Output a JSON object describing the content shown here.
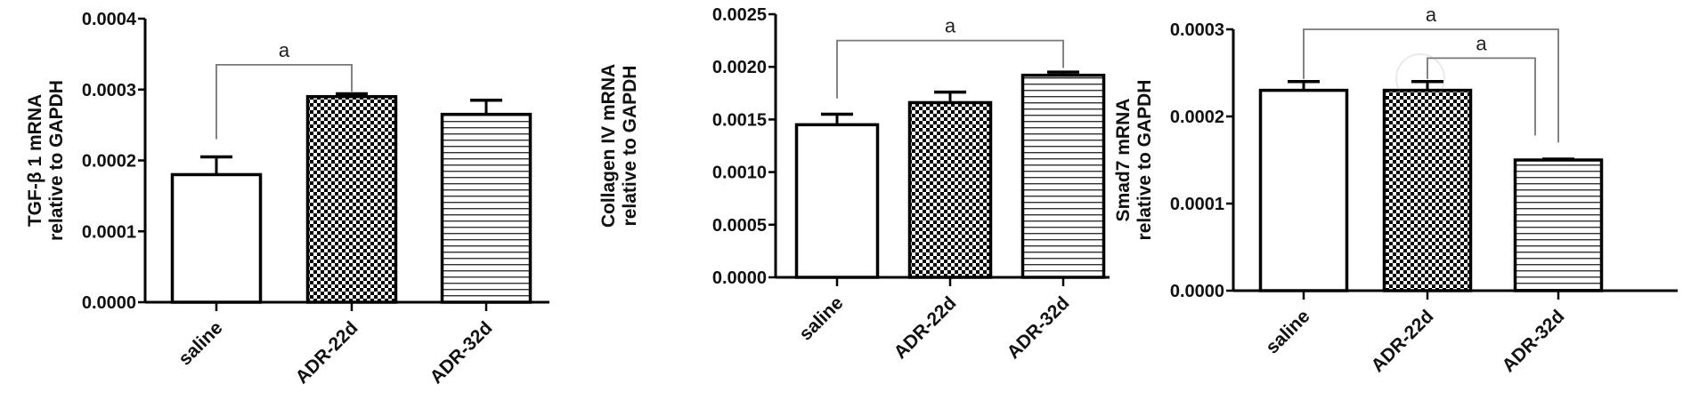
{
  "chart_data": [
    {
      "type": "bar",
      "title": "",
      "ylabel_lines": [
        "TGF-β 1 mRNA",
        "relative to GAPDH"
      ],
      "xlabel": "",
      "categories": [
        "saline",
        "ADR-22d",
        "ADR-32d"
      ],
      "values": [
        0.00018,
        0.00029,
        0.000265
      ],
      "errors": [
        2.5e-05,
        4e-06,
        2e-05
      ],
      "patterns": [
        "white",
        "checker",
        "hlines"
      ],
      "ylim": [
        0,
        0.0004
      ],
      "yticks": [
        "0.0000",
        "0.0001",
        "0.0002",
        "0.0003",
        "0.0004"
      ],
      "ytick_values": [
        0,
        0.0001,
        0.0002,
        0.0003,
        0.0004
      ],
      "significance": [
        {
          "from": "saline",
          "to": "ADR-22d",
          "label": "a"
        }
      ]
    },
    {
      "type": "bar",
      "title": "",
      "ylabel_lines": [
        "Collagen IV mRNA",
        "relative to GAPDH"
      ],
      "xlabel": "",
      "categories": [
        "saline",
        "ADR-22d",
        "ADR-32d"
      ],
      "values": [
        0.00145,
        0.00166,
        0.00192
      ],
      "errors": [
        0.0001,
        0.0001,
        3e-05
      ],
      "patterns": [
        "white",
        "checker",
        "hlines"
      ],
      "ylim": [
        0,
        0.0025
      ],
      "yticks": [
        "0.0000",
        "0.0005",
        "0.0010",
        "0.0015",
        "0.0020",
        "0.0025"
      ],
      "ytick_values": [
        0,
        0.0005,
        0.001,
        0.0015,
        0.002,
        0.0025
      ],
      "significance": [
        {
          "from": "saline",
          "to": "ADR-32d",
          "label": "a"
        }
      ]
    },
    {
      "type": "bar",
      "title": "",
      "ylabel_lines": [
        "Smad7 mRNA",
        "relative to GAPDH"
      ],
      "xlabel": "",
      "categories": [
        "saline",
        "ADR-22d",
        "ADR-32d"
      ],
      "values": [
        0.00023,
        0.00023,
        0.00015
      ],
      "errors": [
        1e-05,
        1e-05,
        1e-06
      ],
      "patterns": [
        "white",
        "checker",
        "hlines"
      ],
      "ylim": [
        0,
        0.0003
      ],
      "yticks": [
        "0.0000",
        "0.0001",
        "0.0002",
        "0.0003"
      ],
      "ytick_values": [
        0,
        0.0001,
        0.0002,
        0.0003
      ],
      "significance": [
        {
          "from": "saline",
          "to": "ADR-32d",
          "label": "a"
        },
        {
          "from": "ADR-22d",
          "to": "ADR-32d",
          "label": "a"
        }
      ]
    }
  ]
}
